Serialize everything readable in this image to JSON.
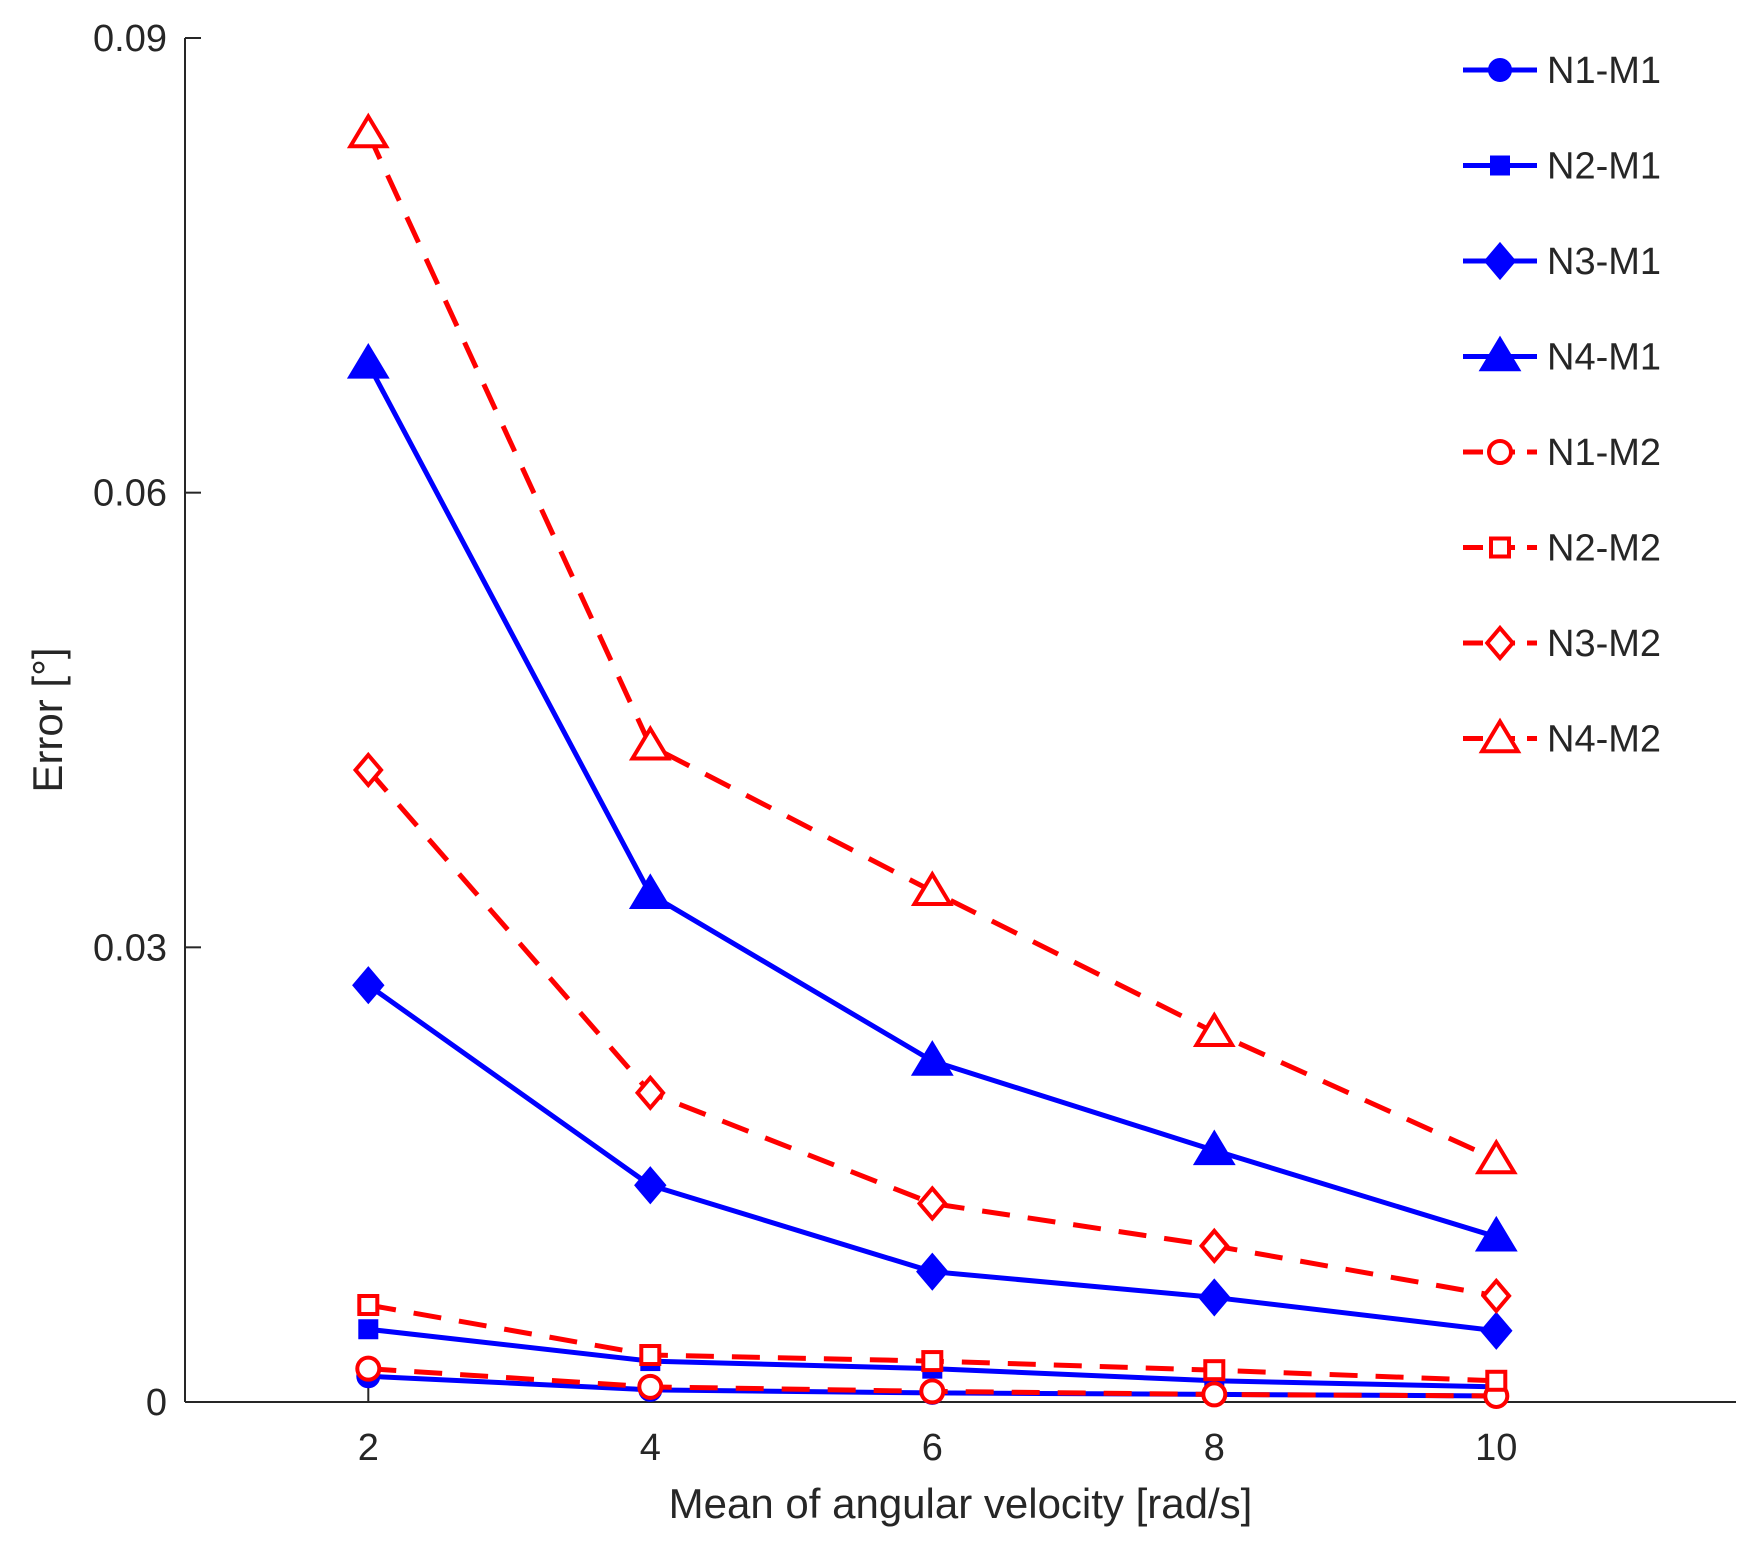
{
  "chart_data": {
    "type": "line",
    "title": "",
    "xlabel": "Mean of angular velocity [rad/s]",
    "ylabel": "Error [°]",
    "x": [
      2,
      4,
      6,
      8,
      10
    ],
    "xlim": [
      0.7,
      11.7
    ],
    "ylim": [
      0,
      0.09
    ],
    "xticks": [
      2,
      4,
      6,
      8,
      10
    ],
    "xtick_labels": [
      "2",
      "4",
      "6",
      "8",
      "10"
    ],
    "yticks": [
      0,
      0.03,
      0.06,
      0.09
    ],
    "ytick_labels": [
      "0",
      "0.03",
      "0.06",
      "0.09"
    ],
    "grid": false,
    "legend_position": "top-right",
    "series": [
      {
        "name": "N1-M1",
        "values": [
          0.0017,
          0.0008,
          0.0006,
          0.0005,
          0.0004
        ],
        "color": "#0000ff",
        "dash": "solid",
        "marker": "circle",
        "filled": true
      },
      {
        "name": "N2-M1",
        "values": [
          0.0048,
          0.0027,
          0.0022,
          0.0014,
          0.001
        ],
        "color": "#0000ff",
        "dash": "solid",
        "marker": "square",
        "filled": true
      },
      {
        "name": "N3-M1",
        "values": [
          0.0275,
          0.0143,
          0.0086,
          0.0069,
          0.0047
        ],
        "color": "#0000ff",
        "dash": "solid",
        "marker": "diamond",
        "filled": true
      },
      {
        "name": "N4-M1",
        "values": [
          0.0685,
          0.0335,
          0.0225,
          0.0166,
          0.0109
        ],
        "color": "#0000ff",
        "dash": "solid",
        "marker": "triangle",
        "filled": true
      },
      {
        "name": "N1-M2",
        "values": [
          0.0022,
          0.001,
          0.0007,
          0.0005,
          0.0004
        ],
        "color": "#ff0000",
        "dash": "dashed",
        "marker": "circle",
        "filled": false
      },
      {
        "name": "N2-M2",
        "values": [
          0.0064,
          0.0031,
          0.0027,
          0.0021,
          0.0014
        ],
        "color": "#ff0000",
        "dash": "dashed",
        "marker": "square",
        "filled": false
      },
      {
        "name": "N3-M2",
        "values": [
          0.0417,
          0.0204,
          0.0131,
          0.0103,
          0.007
        ],
        "color": "#ff0000",
        "dash": "dashed",
        "marker": "diamond",
        "filled": false
      },
      {
        "name": "N4-M2",
        "values": [
          0.0837,
          0.0433,
          0.0337,
          0.0244,
          0.016
        ],
        "color": "#ff0000",
        "dash": "dashed",
        "marker": "triangle",
        "filled": false
      }
    ]
  }
}
